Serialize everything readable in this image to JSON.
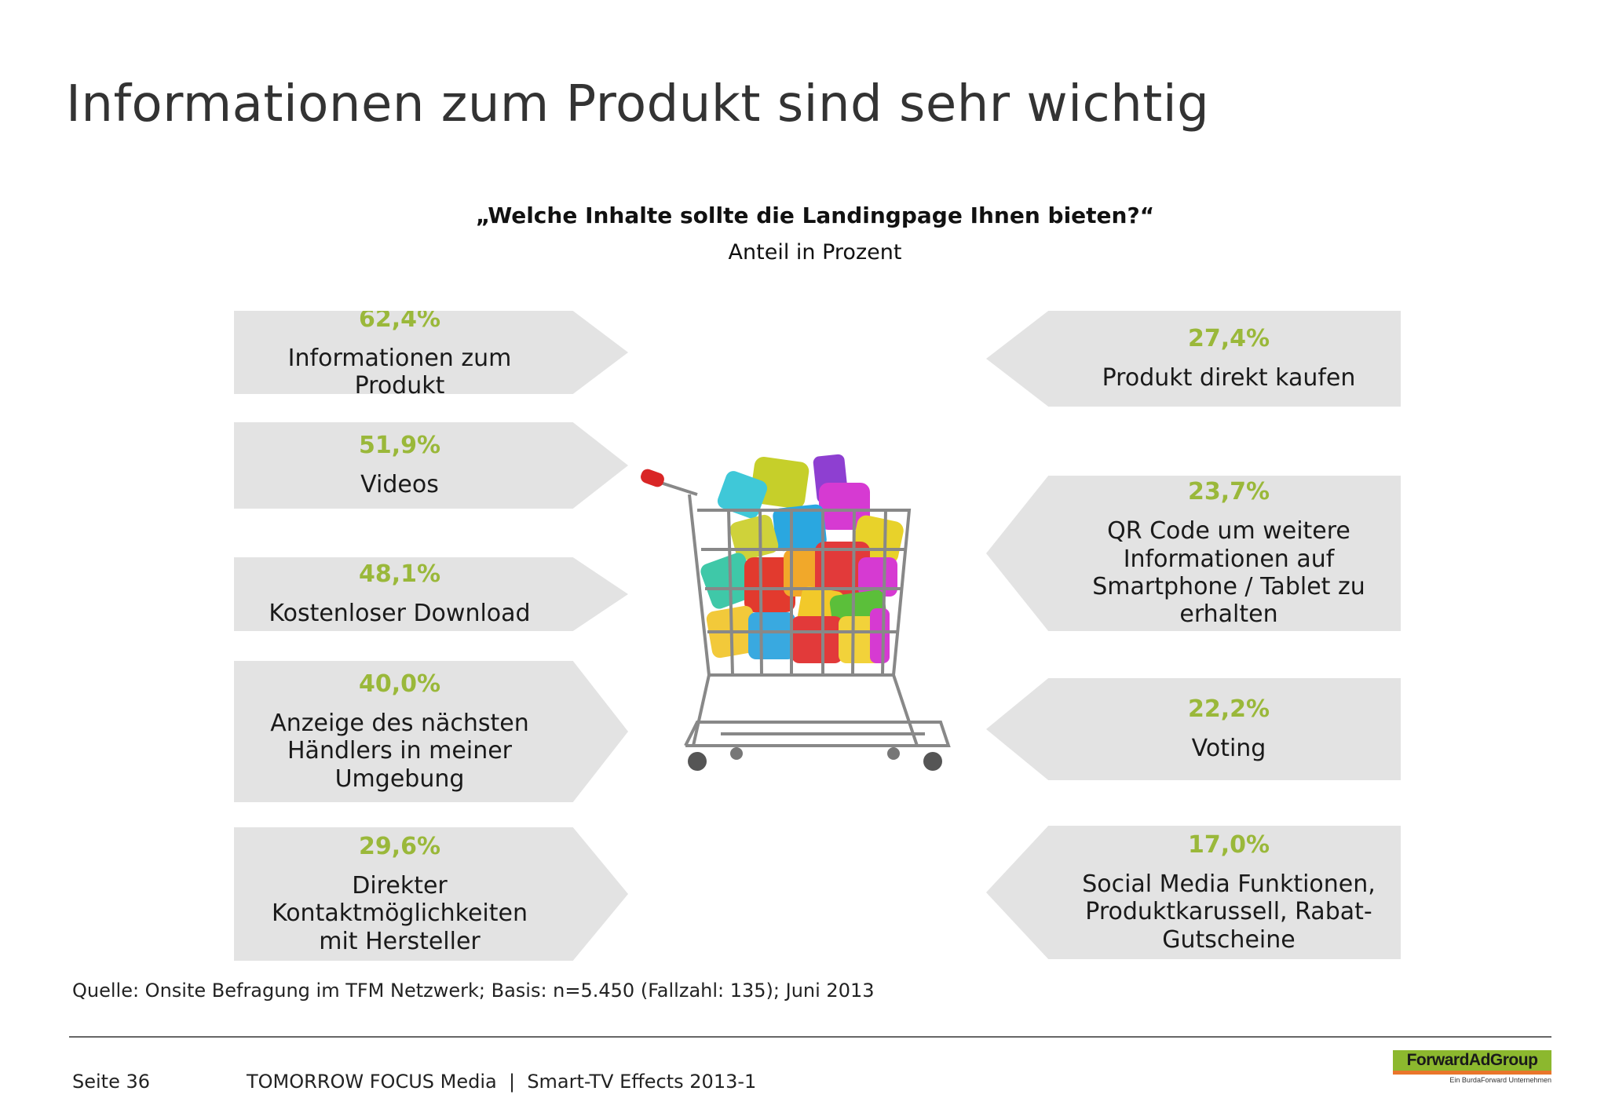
{
  "title": "Informationen zum Produkt sind sehr wichtig",
  "question": "„Welche Inhalte sollte die Landingpage Ihnen bieten?“",
  "subtitle": "Anteil in Prozent",
  "colors": {
    "accent": "#9ab83a",
    "panel": "#e3e3e3"
  },
  "left_items": [
    {
      "percent": "62,4%",
      "value": 62.4,
      "label": "Informationen zum Produkt"
    },
    {
      "percent": "51,9%",
      "value": 51.9,
      "label": "Videos"
    },
    {
      "percent": "48,1%",
      "value": 48.1,
      "label": "Kostenloser Download"
    },
    {
      "percent": "40,0%",
      "value": 40.0,
      "label": "Anzeige des nächsten Händlers in meiner Umgebung"
    },
    {
      "percent": "29,6%",
      "value": 29.6,
      "label": "Direkter Kontaktmöglichkeiten mit Hersteller"
    }
  ],
  "right_items": [
    {
      "percent": "27,4%",
      "value": 27.4,
      "label": "Produkt direkt kaufen"
    },
    {
      "percent": "23,7%",
      "value": 23.7,
      "label": "QR Code um weitere Informationen auf Smartphone / Tablet zu erhalten"
    },
    {
      "percent": "22,2%",
      "value": 22.2,
      "label": "Voting"
    },
    {
      "percent": "17,0%",
      "value": 17.0,
      "label": "Social Media Funktionen, Produktkarussell, Rabat-Gutscheine"
    }
  ],
  "image": {
    "icon": "shopping-cart-with-app-icons"
  },
  "source": "Quelle: Onsite Befragung im TFM Netzwerk; Basis: n=5.450 (Fallzahl: 135); Juni 2013",
  "footer": {
    "page": "Seite 36",
    "text": "TOMORROW FOCUS Media  |  Smart-TV Effects 2013-1",
    "logo_text": "ForwardAdGroup",
    "logo_subtext": "Ein BurdaForward Unternehmen"
  }
}
